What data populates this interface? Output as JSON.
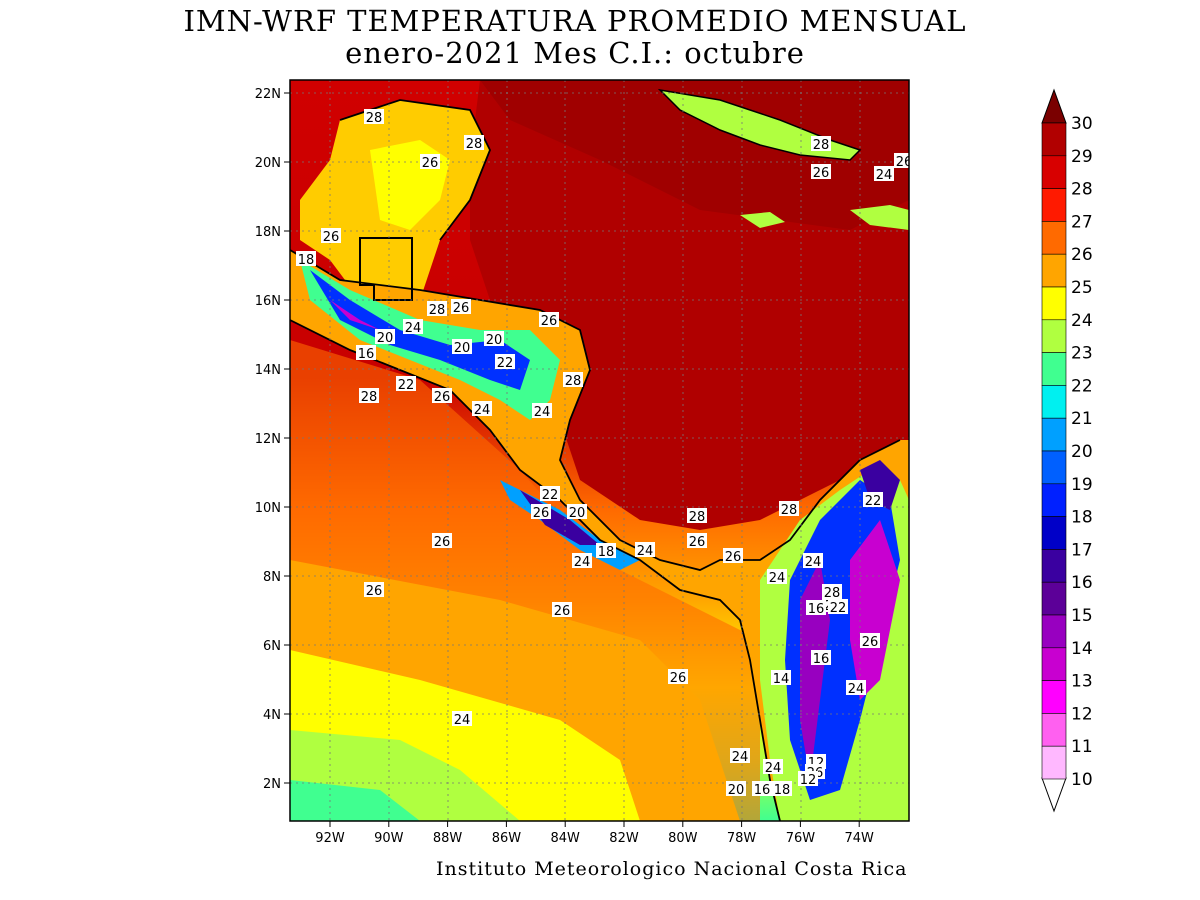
{
  "title": {
    "line1": "IMN-WRF  TEMPERATURA PROMEDIO MENSUAL",
    "line2": "enero-2021 Mes C.I.: octubre"
  },
  "credit": "Instituto Meteorologico Nacional Costa Rica",
  "map": {
    "lat_ticks": [
      "22N",
      "20N",
      "18N",
      "16N",
      "14N",
      "12N",
      "10N",
      "8N",
      "6N",
      "4N",
      "2N"
    ],
    "lon_ticks": [
      "92W",
      "90W",
      "88W",
      "86W",
      "84W",
      "82W",
      "80W",
      "78W",
      "76W",
      "74W"
    ],
    "contour_labels": [
      "28",
      "28",
      "26",
      "26",
      "18",
      "28",
      "26",
      "20",
      "24",
      "16",
      "20",
      "20",
      "22",
      "26",
      "28",
      "22",
      "28",
      "26",
      "24",
      "24",
      "22",
      "26",
      "20",
      "28",
      "28",
      "26",
      "26",
      "24",
      "18",
      "24",
      "26",
      "24",
      "24",
      "26",
      "28",
      "22",
      "26",
      "26",
      "16",
      "22",
      "26",
      "16",
      "14",
      "24",
      "12",
      "24",
      "26",
      "24",
      "16",
      "18",
      "12",
      "20",
      "26",
      "24",
      "28",
      "26",
      "24",
      "26",
      "24"
    ]
  },
  "colorbar": {
    "labels": [
      "30",
      "29",
      "28",
      "27",
      "26",
      "25",
      "24",
      "23",
      "22",
      "21",
      "20",
      "19",
      "18",
      "17",
      "16",
      "15",
      "14",
      "13",
      "12",
      "11",
      "10"
    ],
    "colors": [
      "#7a0000",
      "#b10000",
      "#d80000",
      "#ff1a00",
      "#ff6a00",
      "#ffa500",
      "#ffff00",
      "#b0ff40",
      "#40ff90",
      "#00f0f0",
      "#00a0ff",
      "#0060ff",
      "#0020ff",
      "#0000c8",
      "#3a00a0",
      "#5c0098",
      "#9800c0",
      "#c800d0",
      "#ff00ff",
      "#ff60f0",
      "#ffb8ff"
    ]
  }
}
